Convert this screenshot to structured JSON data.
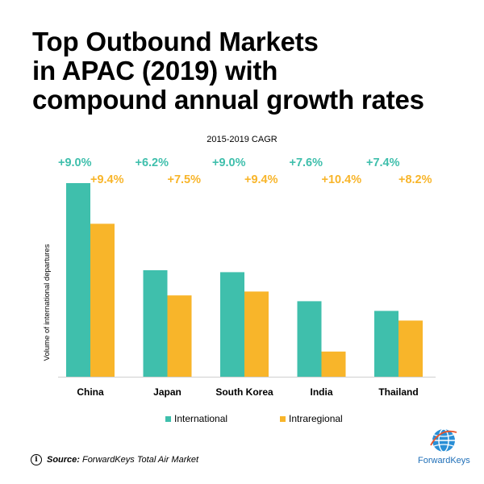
{
  "title_lines": [
    "Top Outbound Markets",
    "in APAC (2019) with",
    "compound annual growth rates"
  ],
  "source": {
    "label": "Source:",
    "text": "ForwardKeys Total Air Market"
  },
  "logo_text": "ForwardKeys",
  "colors": {
    "international": "#3fbfac",
    "intraregional": "#f8b52a",
    "axis": "#cfcfcf"
  },
  "chart_data": {
    "type": "bar",
    "subtitle": "2015-2019 CAGR",
    "ylabel": "Volume of international departures",
    "categories": [
      "China",
      "Japan",
      "South Korea",
      "India",
      "Thailand"
    ],
    "ylim": [
      0,
      100
    ],
    "series": [
      {
        "name": "International",
        "values": [
          100,
          55,
          54,
          39,
          34
        ],
        "labels": [
          "+9.0%",
          "+6.2%",
          "+9.0%",
          "+7.6%",
          "+7.4%"
        ]
      },
      {
        "name": "Intraregional",
        "values": [
          79,
          42,
          44,
          13,
          29
        ],
        "labels": [
          "+9.4%",
          "+7.5%",
          "+9.4%",
          "+10.4%",
          "+8.2%"
        ]
      }
    ],
    "legend": "bottom"
  }
}
